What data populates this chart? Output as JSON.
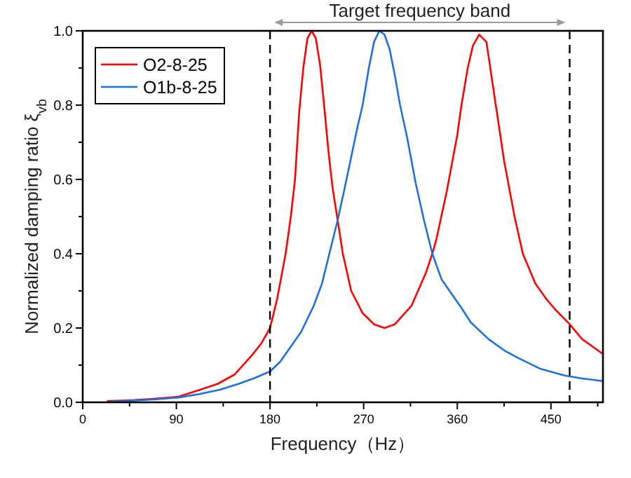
{
  "chart_data": {
    "type": "line",
    "xlabel": "Frequency（Hz）",
    "ylabel": "Normalized damping ratio ξ$_{vb}$",
    "xlim": [
      0,
      500
    ],
    "xticks": [
      0,
      {
        "value": 45,
        "label": null
      },
      90,
      {
        "value": 135,
        "label": null
      },
      180,
      {
        "value": 225,
        "label": null
      },
      270,
      {
        "value": 315,
        "label": null
      },
      360,
      {
        "value": 405,
        "label": null
      },
      450,
      {
        "value": 495,
        "label": null
      }
    ],
    "ylim": [
      0,
      1
    ],
    "yticks": [
      {
        "value": 0,
        "label": "0.0"
      },
      {
        "value": 0.1,
        "label": null
      },
      {
        "value": 0.2,
        "label": "0.2"
      },
      {
        "value": 0.3,
        "label": null
      },
      {
        "value": 0.4,
        "label": "0.4"
      },
      {
        "value": 0.5,
        "label": null
      },
      {
        "value": 0.6,
        "label": "0.6"
      },
      {
        "value": 0.7,
        "label": null
      },
      {
        "value": 0.8,
        "label": "0.8"
      },
      {
        "value": 0.9,
        "label": null
      },
      {
        "value": 1,
        "label": "1.0"
      }
    ],
    "grid": false,
    "legend": "top left",
    "marker": "none",
    "line_style": "solid",
    "series": [
      {
        "name": "O2-8-25",
        "color": "#ff0000",
        "x": [
          24,
          50,
          70,
          92,
          113,
          130,
          146,
          163,
          172,
          180,
          187,
          195,
          200,
          204,
          208,
          212,
          216,
          220,
          224,
          228,
          232,
          236,
          240,
          245,
          250,
          258,
          269,
          280,
          290,
          300,
          316,
          330,
          336,
          340,
          350,
          360,
          364,
          370,
          375,
          381,
          388,
          397,
          405,
          415,
          423,
          435,
          445,
          454,
          468,
          480,
          490,
          500
        ],
        "values": [
          0.003,
          0.006,
          0.01,
          0.015,
          0.034,
          0.05,
          0.075,
          0.128,
          0.16,
          0.2,
          0.28,
          0.4,
          0.5,
          0.6,
          0.78,
          0.9,
          0.98,
          1.0,
          0.98,
          0.91,
          0.8,
          0.68,
          0.58,
          0.49,
          0.4,
          0.3,
          0.24,
          0.21,
          0.2,
          0.21,
          0.26,
          0.35,
          0.4,
          0.44,
          0.57,
          0.72,
          0.8,
          0.9,
          0.96,
          0.99,
          0.97,
          0.8,
          0.65,
          0.5,
          0.4,
          0.32,
          0.28,
          0.25,
          0.21,
          0.17,
          0.15,
          0.13
        ]
      },
      {
        "name": "O1b-8-25",
        "color": "#1f6fdc",
        "x": [
          26,
          50,
          70,
          92,
          112,
          132,
          150,
          165,
          180,
          190,
          200,
          210,
          222,
          230,
          237,
          245,
          252,
          258,
          264,
          269,
          275,
          280,
          285,
          290,
          295,
          300,
          305,
          312,
          320,
          328,
          336,
          345,
          355,
          365,
          373,
          390,
          405,
          418,
          440,
          463,
          480,
          500
        ],
        "values": [
          0.002,
          0.005,
          0.008,
          0.013,
          0.022,
          0.034,
          0.05,
          0.065,
          0.083,
          0.11,
          0.15,
          0.19,
          0.26,
          0.32,
          0.4,
          0.49,
          0.58,
          0.66,
          0.74,
          0.8,
          0.9,
          0.97,
          1.0,
          0.99,
          0.95,
          0.88,
          0.8,
          0.71,
          0.59,
          0.49,
          0.4,
          0.33,
          0.29,
          0.25,
          0.215,
          0.17,
          0.14,
          0.12,
          0.09,
          0.072,
          0.064,
          0.057
        ]
      }
    ],
    "ref_lines": [
      {
        "axis": "x",
        "value": 180,
        "color": "#000000",
        "line_style": "dashed"
      },
      {
        "axis": "x",
        "value": 468,
        "color": "#000000",
        "line_style": "dashed"
      }
    ],
    "annotations": [
      "Target frequency band"
    ]
  }
}
